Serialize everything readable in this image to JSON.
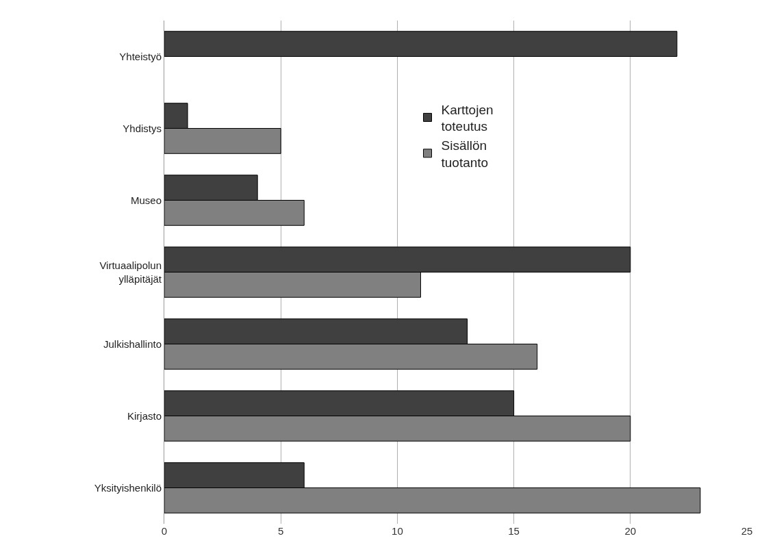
{
  "chart_data": {
    "type": "bar",
    "orientation": "horizontal",
    "categories": [
      "Yhteistyö",
      "Yhdistys",
      "Museo",
      "Virtuaalipolun ylläpitäjät",
      "Julkishallinto",
      "Kirjasto",
      "Yksityishenkilö"
    ],
    "series": [
      {
        "name": "Karttojen toteutus",
        "color": "#404040",
        "values": [
          22,
          1,
          4,
          20,
          13,
          15,
          6
        ]
      },
      {
        "name": "Sisällön tuotanto",
        "color": "#808080",
        "values": [
          null,
          5,
          6,
          11,
          16,
          20,
          23
        ]
      }
    ],
    "xlim": [
      0,
      25
    ],
    "xticks": [
      0,
      5,
      10,
      15,
      20,
      25
    ],
    "grid": "x",
    "legend": "top"
  }
}
